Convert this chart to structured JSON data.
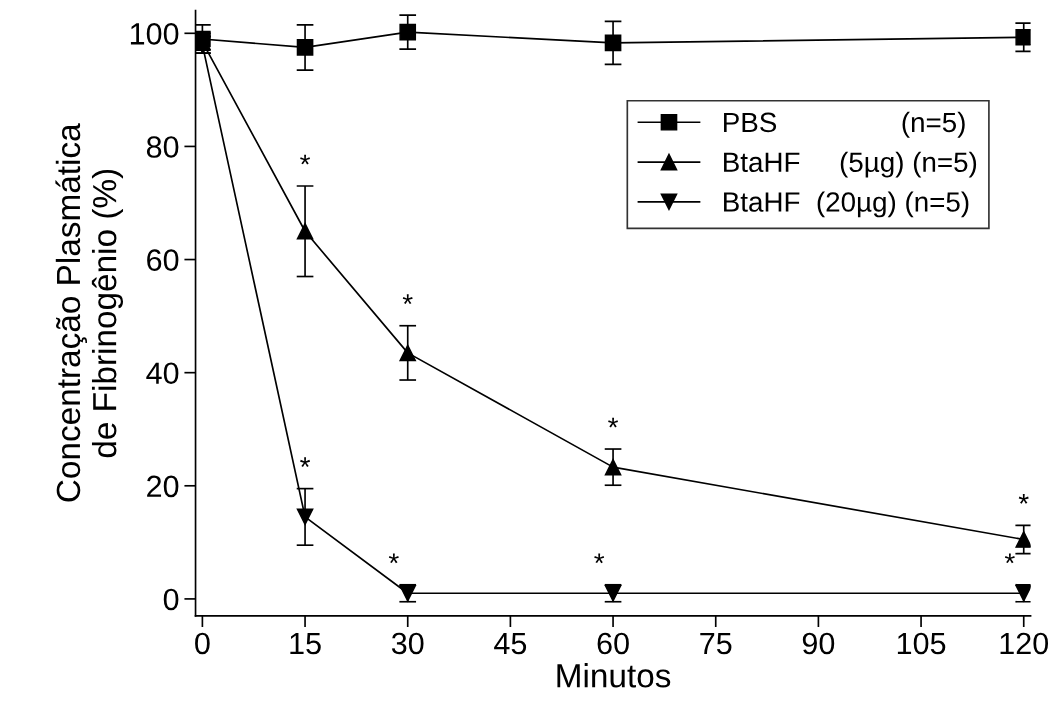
{
  "chart_data": {
    "type": "line",
    "xlabel": "Minutos",
    "ylabel": "Concentração Plasmática\nde Fibrinogênio (%)",
    "x": [
      0,
      15,
      30,
      60,
      120
    ],
    "xlim": [
      -1,
      121
    ],
    "xticks": [
      0,
      15,
      30,
      45,
      60,
      75,
      90,
      105,
      120
    ],
    "ylim": [
      -3,
      104
    ],
    "yticks": [
      0,
      20,
      40,
      60,
      80,
      100
    ],
    "grid": false,
    "legend": "top right",
    "line_style": "solid",
    "series": [
      {
        "name": "PBS                (n=5)",
        "color": "#000000",
        "marker": "square",
        "values": [
          99,
          97.5,
          100.2,
          98.3,
          99.3
        ],
        "errors": [
          2.5,
          4,
          3,
          3.8,
          2.5
        ]
      },
      {
        "name": "BtaHF     (5µg) (n=5)",
        "color": "#000000",
        "marker": "triangle",
        "values": [
          98.5,
          65,
          43.5,
          23.3,
          10.5
        ],
        "errors": [
          1.5,
          8,
          4.8,
          3.2,
          2.5
        ]
      },
      {
        "name": "BtaHF  (20µg) (n=5)",
        "color": "#000000",
        "marker": "triangle_down",
        "values": [
          98,
          14.5,
          1,
          1,
          1
        ],
        "errors": [
          1.5,
          5,
          1.5,
          1.5,
          1.5
        ]
      }
    ],
    "annotations": [
      {
        "text": "*",
        "x": 15,
        "y": 65
      },
      {
        "text": "*",
        "x": 30,
        "y": 43.5
      },
      {
        "text": "*",
        "x": 60,
        "y": 23.3
      },
      {
        "text": "*",
        "x": 120,
        "y": 10.5
      },
      {
        "text": "*",
        "x": 15,
        "y": 14.5
      },
      {
        "text": "*",
        "x": 30,
        "y": 1
      },
      {
        "text": "*",
        "x": 60,
        "y": 1
      },
      {
        "text": "*",
        "x": 120,
        "y": 1
      }
    ]
  }
}
